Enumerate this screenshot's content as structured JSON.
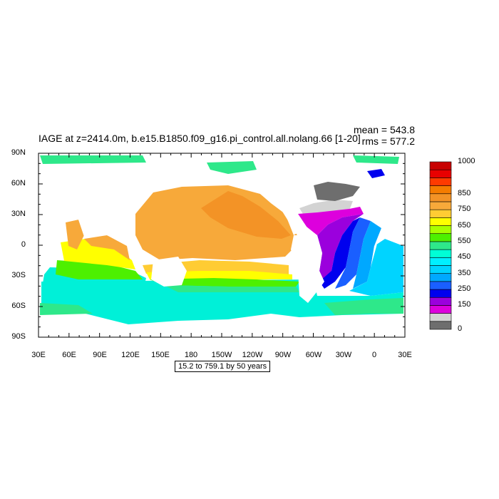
{
  "title": "IAGE at z=2414.0m, b.e15.B1850.f09_g16.pi_control.all.nolang.66 [1-20]",
  "stats": {
    "mean": "mean = 543.8",
    "rms": "rms = 577.2"
  },
  "range_text": "15.2 to 759.1 by 50 years",
  "lat_labels": [
    "90N",
    "60N",
    "30N",
    "0",
    "30S",
    "60S",
    "90S"
  ],
  "lon_labels": [
    "30E",
    "60E",
    "90E",
    "120E",
    "150E",
    "180",
    "150W",
    "120W",
    "90W",
    "60W",
    "30W",
    "0",
    "30E"
  ],
  "colorbar": {
    "colors": [
      "#6e6e6e",
      "#d3d3d3",
      "#dd00dd",
      "#9b00dd",
      "#0000ee",
      "#1a5fff",
      "#00a8ff",
      "#00d4ff",
      "#00f0ff",
      "#00ffd6",
      "#2ee88a",
      "#4df000",
      "#a8ff00",
      "#ffff00",
      "#ffcc33",
      "#f7a93a",
      "#f39326",
      "#f57c00",
      "#ff3a00",
      "#e80000",
      "#c80000"
    ],
    "tick_labels": [
      "0",
      "150",
      "250",
      "350",
      "450",
      "550",
      "650",
      "750",
      "850",
      "1000"
    ],
    "tick_band_index": [
      0,
      3,
      5,
      7,
      9,
      11,
      13,
      15,
      17,
      21
    ]
  },
  "colors": {
    "land": "#ffffff",
    "frame": "#000000"
  }
}
